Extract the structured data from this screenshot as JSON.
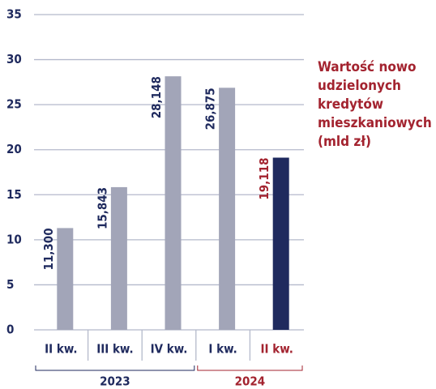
{
  "chart_data": {
    "type": "bar",
    "title": "Wartość nowo udzielonych kredytów mieszkaniowych (mld zł)",
    "title_color": "#a3232f",
    "categories": [
      "II kw.",
      "III kw.",
      "IV kw.",
      "I kw.",
      "II kw."
    ],
    "values": [
      11.3,
      15.843,
      28.148,
      26.875,
      19.118
    ],
    "value_labels": [
      "11,300",
      "15,843",
      "28,148",
      "26,875",
      "19,118"
    ],
    "colors": [
      "#a2a5b8",
      "#a2a5b8",
      "#a2a5b8",
      "#a2a5b8",
      "#1f2a5e"
    ],
    "category_label_colors": [
      "#1f2a5e",
      "#1f2a5e",
      "#1f2a5e",
      "#1f2a5e",
      "#a3232f"
    ],
    "value_label_colors": [
      "#1f2a5e",
      "#1f2a5e",
      "#1f2a5e",
      "#1f2a5e",
      "#a3232f"
    ],
    "group_labels": [
      "2023",
      "2024"
    ],
    "group_colors": [
      "#1f2a5e",
      "#a3232f"
    ],
    "ylim": [
      0,
      35
    ],
    "yticks": [
      0,
      5,
      10,
      15,
      20,
      25,
      30,
      35
    ],
    "grid": true
  }
}
